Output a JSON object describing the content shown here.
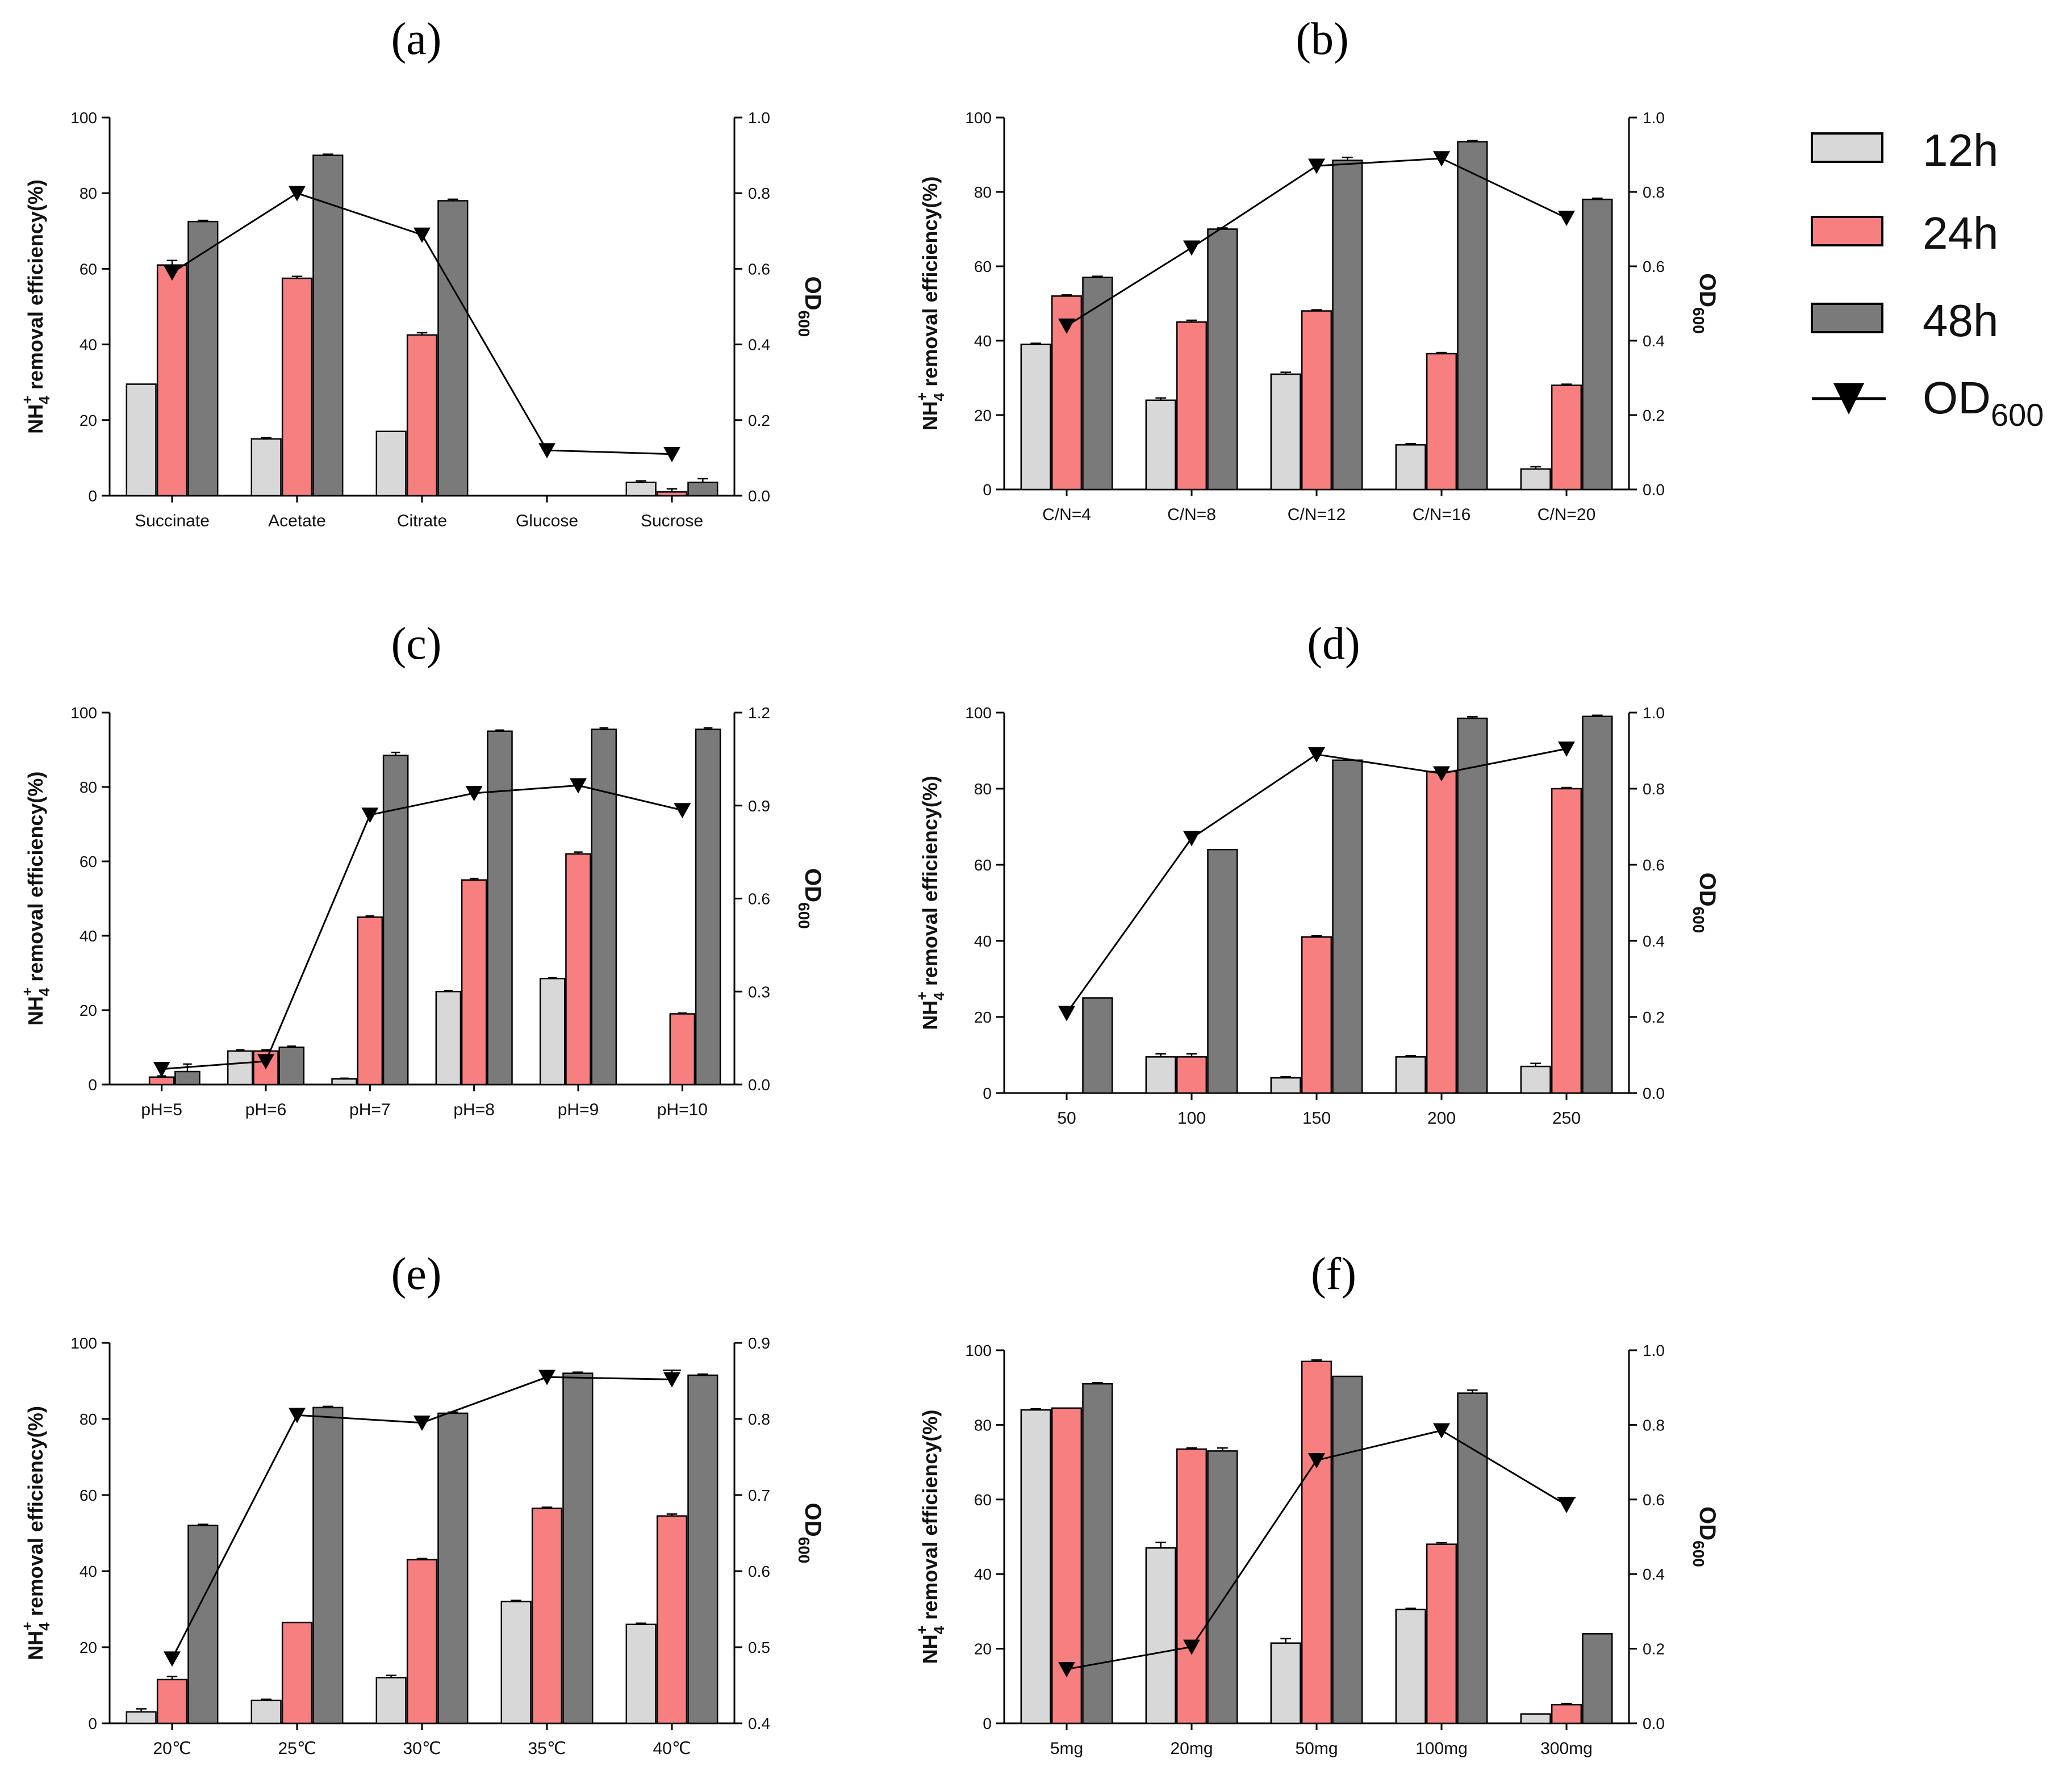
{
  "figure_colors": {
    "12h": "#d8d8d8",
    "24h": "#f77f80",
    "48h": "#7a7a7a",
    "line": "#000000",
    "axis": "#000000"
  },
  "legend": {
    "items": [
      {
        "key": "12h",
        "label": "12h"
      },
      {
        "key": "24h",
        "label": "24h"
      },
      {
        "key": "48h",
        "label": "48h"
      }
    ],
    "od_label": "OD",
    "od_sub": "600"
  },
  "y_label_main": "NH",
  "y_label_sub": "4",
  "y_label_sup": "+",
  "y_label_rest": " removal efficiency(%)",
  "y2_label_main": "OD",
  "y2_label_sub": "600",
  "chart_data": [
    {
      "id": "a",
      "title": "(a)",
      "type": "bar",
      "categories": [
        "Succinate",
        "Acetate",
        "Citrate",
        "Glucose",
        "Sucrose"
      ],
      "series": [
        {
          "name": "12h",
          "values": [
            29.5,
            15,
            17,
            0,
            3.5
          ],
          "errors": [
            0,
            0.3,
            0,
            0,
            0.4
          ]
        },
        {
          "name": "24h",
          "values": [
            61,
            57.5,
            42.5,
            0,
            1
          ],
          "errors": [
            1.2,
            0.5,
            0.6,
            0,
            0.8
          ]
        },
        {
          "name": "48h",
          "values": [
            72.5,
            90,
            78,
            0,
            3.5
          ],
          "errors": [
            0.3,
            0.3,
            0.4,
            0,
            1
          ]
        }
      ],
      "line": {
        "name": "OD600",
        "values": [
          0.59,
          0.8,
          0.69,
          0.12,
          0.11
        ]
      },
      "ylim": [
        0,
        100
      ],
      "yticks": [
        0,
        20,
        40,
        60,
        80,
        100
      ],
      "y2lim": [
        0,
        1.0
      ],
      "y2ticks": [
        0.0,
        0.2,
        0.4,
        0.6,
        0.8,
        1.0
      ],
      "y2ticklabels": [
        "0.0",
        "0.2",
        "0.4",
        "0.6",
        "0.8",
        "1.0"
      ]
    },
    {
      "id": "b",
      "title": "(b)",
      "type": "bar",
      "categories": [
        "C/N=4",
        "C/N=8",
        "C/N=12",
        "C/N=16",
        "C/N=20"
      ],
      "series": [
        {
          "name": "12h",
          "values": [
            39,
            24,
            31,
            12,
            5.5
          ],
          "errors": [
            0.3,
            0.6,
            0.5,
            0.3,
            0.6
          ]
        },
        {
          "name": "24h",
          "values": [
            52,
            45,
            48,
            36.5,
            28
          ],
          "errors": [
            0.3,
            0.5,
            0.3,
            0.3,
            0.3
          ]
        },
        {
          "name": "48h",
          "values": [
            57,
            70,
            88.5,
            93.5,
            78
          ],
          "errors": [
            0.3,
            0.3,
            0.8,
            0.3,
            0.3
          ]
        }
      ],
      "line": {
        "name": "OD600",
        "values": [
          0.44,
          0.65,
          0.87,
          0.89,
          0.73
        ]
      },
      "ylim": [
        0,
        100
      ],
      "yticks": [
        0,
        20,
        40,
        60,
        80,
        100
      ],
      "y2lim": [
        0,
        1.0
      ],
      "y2ticks": [
        0.0,
        0.2,
        0.4,
        0.6,
        0.8,
        1.0
      ],
      "y2ticklabels": [
        "0.0",
        "0.2",
        "0.4",
        "0.6",
        "0.8",
        "1.0"
      ]
    },
    {
      "id": "c",
      "title": "(c)",
      "type": "bar",
      "categories": [
        "pH=5",
        "pH=6",
        "pH=7",
        "pH=8",
        "pH=9",
        "pH=10"
      ],
      "series": [
        {
          "name": "12h",
          "values": [
            0,
            9,
            1.5,
            25,
            28.5,
            0
          ],
          "errors": [
            0,
            0.3,
            0.2,
            0.2,
            0.2,
            0
          ]
        },
        {
          "name": "24h",
          "values": [
            2,
            9,
            45,
            55,
            62,
            19
          ],
          "errors": [
            0.3,
            0.3,
            0.3,
            0.4,
            0.5,
            0.2
          ]
        },
        {
          "name": "48h",
          "values": [
            3.5,
            10,
            88.5,
            95,
            95.5,
            95.5
          ],
          "errors": [
            2,
            0.3,
            0.8,
            0.3,
            0.4,
            0.4
          ]
        }
      ],
      "line": {
        "name": "OD600",
        "values": [
          0.05,
          0.075,
          0.87,
          0.94,
          0.965,
          0.885
        ]
      },
      "ylim": [
        0,
        100
      ],
      "yticks": [
        0,
        20,
        40,
        60,
        80,
        100
      ],
      "y2lim": [
        0,
        1.2
      ],
      "y2ticks": [
        0.0,
        0.3,
        0.6,
        0.9,
        1.2
      ],
      "y2ticklabels": [
        "0.0",
        "0.3",
        "0.6",
        "0.9",
        "1.2"
      ]
    },
    {
      "id": "d",
      "title": "(d)",
      "type": "bar",
      "categories": [
        "50",
        "100",
        "150",
        "200",
        "250"
      ],
      "series": [
        {
          "name": "12h",
          "values": [
            0,
            9.5,
            4,
            9.5,
            7
          ],
          "errors": [
            0,
            0.8,
            0.3,
            0.3,
            0.8
          ]
        },
        {
          "name": "24h",
          "values": [
            0,
            9.5,
            41,
            84.5,
            80
          ],
          "errors": [
            0,
            0.8,
            0.3,
            1,
            0.3
          ]
        },
        {
          "name": "48h",
          "values": [
            25,
            64,
            87.5,
            98.5,
            99
          ],
          "errors": [
            0,
            0,
            0,
            0.4,
            0.3
          ]
        }
      ],
      "line": {
        "name": "OD600",
        "values": [
          0.21,
          0.67,
          0.89,
          0.84,
          0.905
        ]
      },
      "ylim": [
        0,
        100
      ],
      "yticks": [
        0,
        20,
        40,
        60,
        80,
        100
      ],
      "y2lim": [
        0,
        1.0
      ],
      "y2ticks": [
        0.0,
        0.2,
        0.4,
        0.6,
        0.8,
        1.0
      ],
      "y2ticklabels": [
        "0.0",
        "0.2",
        "0.4",
        "0.6",
        "0.8",
        "1.0"
      ]
    },
    {
      "id": "e",
      "title": "(e)",
      "type": "bar",
      "categories": [
        "20℃",
        "25℃",
        "30℃",
        "35℃",
        "40℃"
      ],
      "series": [
        {
          "name": "12h",
          "values": [
            3,
            6,
            12,
            32,
            26
          ],
          "errors": [
            0.8,
            0.3,
            0.6,
            0.3,
            0.3
          ]
        },
        {
          "name": "24h",
          "values": [
            11.5,
            26.5,
            43,
            56.5,
            54.5
          ],
          "errors": [
            0.8,
            0,
            0.3,
            0.3,
            0.5
          ]
        },
        {
          "name": "48h",
          "values": [
            52,
            83,
            81.5,
            92,
            91.5
          ],
          "errors": [
            0.3,
            0.3,
            0.3,
            0.3,
            0.3
          ]
        }
      ],
      "line": {
        "name": "OD600",
        "values": [
          0.485,
          0.805,
          0.795,
          0.855,
          0.852
        ],
        "errors": [
          0,
          0,
          0,
          0,
          0.012
        ]
      },
      "ylim": [
        0,
        100
      ],
      "yticks": [
        0,
        20,
        40,
        60,
        80,
        100
      ],
      "y2lim": [
        0.4,
        0.9
      ],
      "y2ticks": [
        0.4,
        0.5,
        0.6,
        0.7,
        0.8,
        0.9
      ],
      "y2ticklabels": [
        "0.4",
        "0.5",
        "0.6",
        "0.7",
        "0.8",
        "0.9"
      ]
    },
    {
      "id": "f",
      "title": "(f)",
      "type": "bar",
      "categories": [
        "5mg",
        "20mg",
        "50mg",
        "100mg",
        "300mg"
      ],
      "series": [
        {
          "name": "12h",
          "values": [
            84,
            47,
            21.5,
            30.5,
            2.5
          ],
          "errors": [
            0.3,
            1.5,
            1.2,
            0.3,
            0
          ]
        },
        {
          "name": "24h",
          "values": [
            84.5,
            73.5,
            97,
            48,
            5
          ],
          "errors": [
            0,
            0.3,
            0.4,
            0.4,
            0.3
          ]
        },
        {
          "name": "48h",
          "values": [
            91,
            73,
            93,
            88.5,
            24
          ],
          "errors": [
            0.3,
            0.8,
            0,
            0.8,
            0
          ]
        }
      ],
      "line": {
        "name": "OD600",
        "values": [
          0.145,
          0.205,
          0.705,
          0.785,
          0.585
        ],
        "errors": [
          0,
          0,
          0,
          0,
          0.02
        ]
      },
      "ylim": [
        0,
        100
      ],
      "yticks": [
        0,
        20,
        40,
        60,
        80,
        100
      ],
      "y2lim": [
        0,
        1.0
      ],
      "y2ticks": [
        0.0,
        0.2,
        0.4,
        0.6,
        0.8,
        1.0
      ],
      "y2ticklabels": [
        "0.0",
        "0.2",
        "0.4",
        "0.6",
        "0.8",
        "1.0"
      ]
    }
  ]
}
